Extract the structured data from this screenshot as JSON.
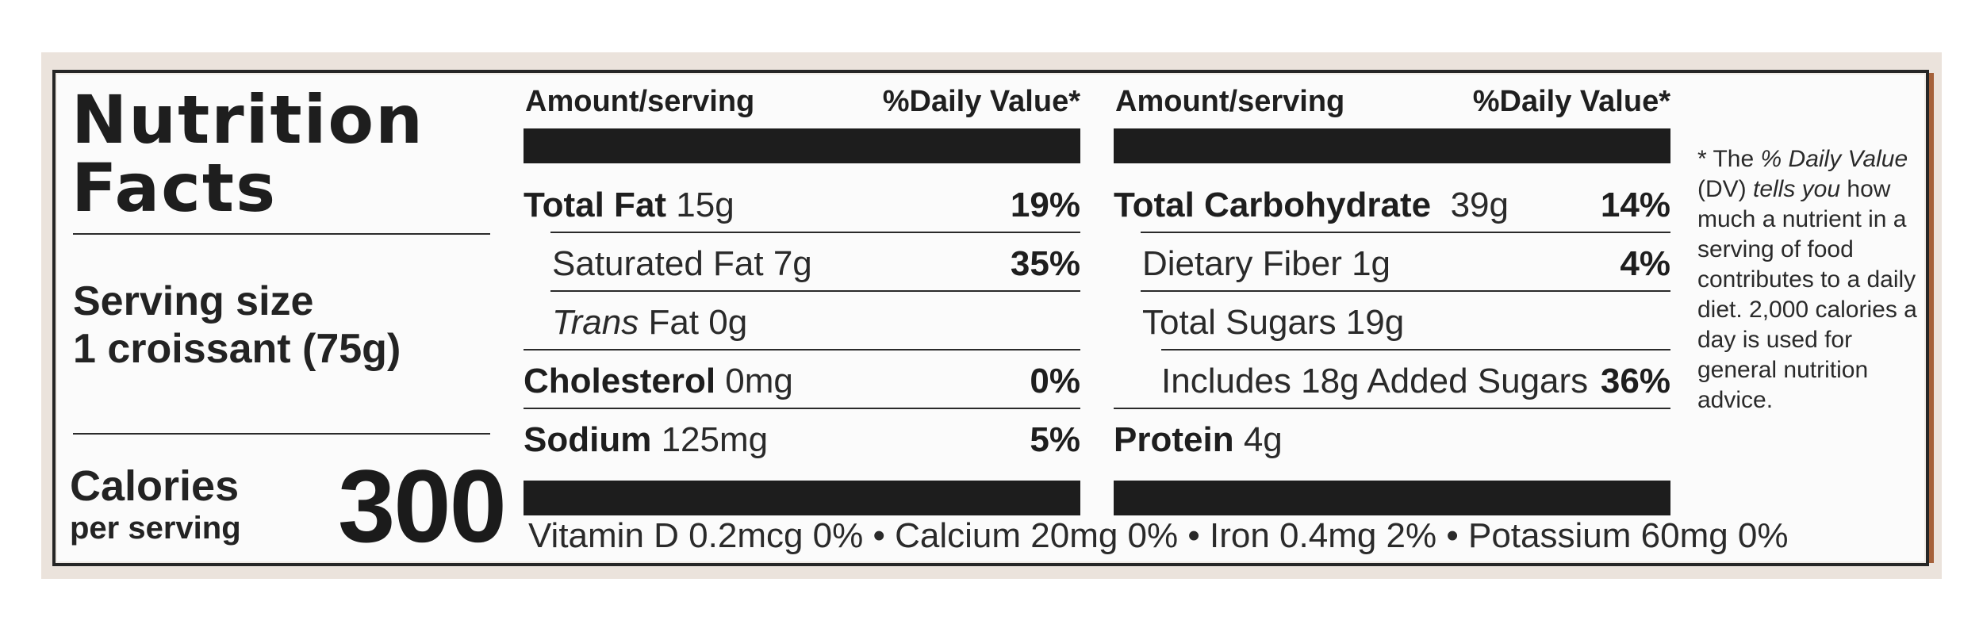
{
  "panel": {
    "title_line1": "Nutrition",
    "title_line2": "Facts",
    "serving_size_label": "Serving size",
    "serving_size_value": "1 croissant (75g)",
    "calories_label": "Calories",
    "calories_sub": "per serving",
    "calories_value": "300"
  },
  "columns": [
    {
      "header_left": "Amount/serving",
      "header_right": "%Daily Value*",
      "rows": [
        {
          "name_bold": "Total Fat",
          "amount": "15g",
          "dv": "19%"
        },
        {
          "name": "Saturated Fat 7g",
          "dv": "35%"
        },
        {
          "name_italic": "Trans",
          "name": "Fat 0g",
          "dv": ""
        },
        {
          "name_bold": "Cholesterol",
          "amount": "0mg",
          "dv": "0%"
        },
        {
          "name_bold": "Sodium",
          "amount": "125mg",
          "dv": "5%"
        }
      ]
    },
    {
      "header_left": "Amount/serving",
      "header_right": "%Daily Value*",
      "rows": [
        {
          "name_bold": "Total Carbohydrate",
          "amount": "39g",
          "dv": "14%"
        },
        {
          "name": "Dietary Fiber 1g",
          "dv": "4%"
        },
        {
          "name": "Total Sugars 19g",
          "dv": ""
        },
        {
          "name": "Includes 18g Added Sugars",
          "dv": "36%"
        },
        {
          "name_bold": "Protein",
          "amount": "4g",
          "dv": ""
        }
      ]
    }
  ],
  "vitamins": "Vitamin D 0.2mcg 0% • Calcium 20mg 0% • Iron 0.4mg 2% • Potassium 60mg 0%",
  "footnote": {
    "star": "* The",
    "dv_italic": "% Daily Value",
    "rest1": "(DV)",
    "tells_italic": "tells you",
    "rest2": "how much a nutrient in a serving of food contributes to a daily diet. 2,000 calories a day is used for general nutrition advice."
  },
  "colors": {
    "ink": "#1d1d1d",
    "paper": "#fbfbfb",
    "backdrop": "#ebe3dc"
  }
}
